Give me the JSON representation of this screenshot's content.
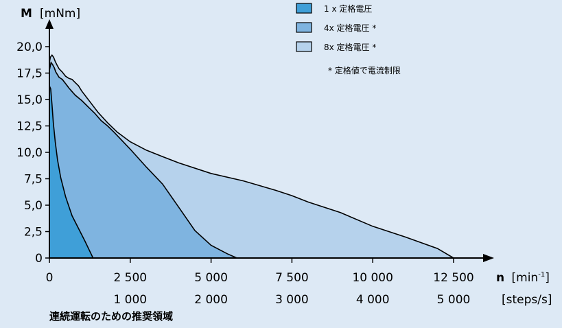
{
  "chart_data": {
    "type": "area",
    "y_axis": {
      "symbol": "M",
      "unit": "[mNm]",
      "range": [
        0,
        21
      ],
      "ticks": [
        "20,0",
        "17,5",
        "15,0",
        "12,5",
        "10,0",
        "7,5",
        "5,0",
        "2,5",
        "0"
      ],
      "tick_values": [
        20,
        17.5,
        15,
        12.5,
        10,
        7.5,
        5,
        2.5,
        0
      ]
    },
    "x_axis": {
      "symbol": "n",
      "unit_base": "[min",
      "unit_sup": "-1",
      "unit_close": "]",
      "unit2": "[steps/s]",
      "range": [
        0,
        13500
      ],
      "ticks_primary": [
        "0",
        "2 500",
        "5 000",
        "7 500",
        "10 000",
        "12 500"
      ],
      "tick_values_primary": [
        0,
        2500,
        5000,
        7500,
        10000,
        12500
      ],
      "ticks_secondary": [
        "1 000",
        "2 000",
        "3 000",
        "4 000",
        "5 000"
      ],
      "tick_values_secondary": [
        2500,
        5000,
        7500,
        10000,
        12500
      ]
    },
    "legend": [
      {
        "label": "1 x 定格電圧",
        "color": "#3f9fd8"
      },
      {
        "label": "4x 定格電圧 *",
        "color": "#7fb4e0"
      },
      {
        "label": "8x 定格電圧 *",
        "color": "#b6d2ec"
      }
    ],
    "footnote": "* 定格値で電流制限",
    "caption": "連続運転のための推奨領域",
    "series": [
      {
        "legend_index": 2,
        "color": "#b6d2ec",
        "x": [
          0,
          30,
          80,
          130,
          180,
          230,
          300,
          400,
          500,
          600,
          700,
          800,
          900,
          1000,
          1100,
          1300,
          1500,
          1800,
          2100,
          2500,
          3000,
          3500,
          4000,
          5000,
          6000,
          7000,
          7500,
          8000,
          9000,
          10000,
          11000,
          12000,
          12500
        ],
        "y": [
          18.5,
          19.0,
          19.2,
          19.0,
          18.6,
          18.3,
          17.9,
          17.6,
          17.2,
          17.0,
          16.9,
          16.6,
          16.3,
          15.8,
          15.4,
          14.6,
          13.8,
          12.8,
          11.9,
          11.0,
          10.2,
          9.6,
          9.0,
          8.0,
          7.3,
          6.4,
          5.9,
          5.3,
          4.3,
          3.0,
          2.0,
          0.9,
          0
        ]
      },
      {
        "legend_index": 1,
        "color": "#7fb4e0",
        "x": [
          0,
          50,
          100,
          150,
          200,
          300,
          400,
          500,
          600,
          800,
          1000,
          1200,
          1400,
          1600,
          1800,
          2000,
          2500,
          3000,
          3500,
          4000,
          4500,
          5000,
          5500,
          5800
        ],
        "y": [
          17.8,
          18.5,
          18.3,
          18.0,
          17.6,
          17.1,
          16.9,
          16.5,
          16.1,
          15.4,
          14.9,
          14.3,
          13.7,
          13.0,
          12.5,
          11.9,
          10.3,
          8.6,
          7.0,
          4.8,
          2.6,
          1.2,
          0.4,
          0
        ]
      },
      {
        "legend_index": 0,
        "color": "#3f9fd8",
        "x": [
          0,
          40,
          80,
          120,
          180,
          250,
          350,
          500,
          700,
          900,
          1100,
          1350
        ],
        "y": [
          16.3,
          16.0,
          14.5,
          12.8,
          11.0,
          9.3,
          7.6,
          5.8,
          4.0,
          2.8,
          1.6,
          0
        ]
      }
    ]
  }
}
